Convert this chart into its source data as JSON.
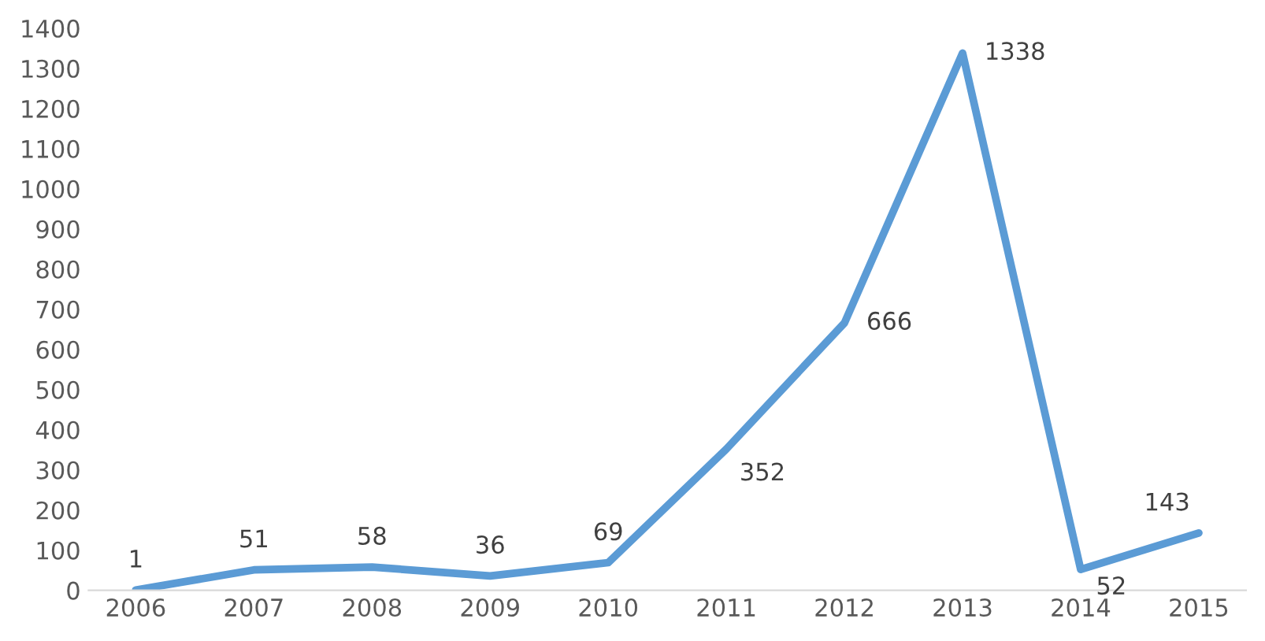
{
  "chart_data": {
    "type": "line",
    "categories": [
      "2006",
      "2007",
      "2008",
      "2009",
      "2010",
      "2011",
      "2012",
      "2013",
      "2014",
      "2015"
    ],
    "values": [
      1,
      51,
      58,
      36,
      69,
      352,
      666,
      1338,
      52,
      143
    ],
    "color": "#5b9bd5",
    "ylim": [
      0,
      1400
    ],
    "yticks": [
      0,
      100,
      200,
      300,
      400,
      500,
      600,
      700,
      800,
      900,
      1000,
      1100,
      1200,
      1300,
      1400
    ],
    "data_labels": true,
    "grid": false,
    "legend": false
  }
}
